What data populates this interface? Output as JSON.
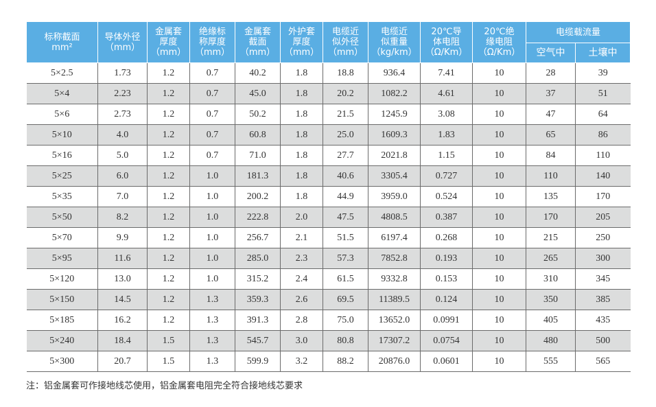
{
  "headers": {
    "c1": [
      "标称截面",
      "mm²"
    ],
    "c2": [
      "导体外径",
      "（mm）"
    ],
    "c3": [
      "金属套",
      "厚度",
      "（mm）"
    ],
    "c4": [
      "绝缘标",
      "称厚度",
      "（mm）"
    ],
    "c5": [
      "金属套",
      "截面",
      "（mm）"
    ],
    "c6": [
      "外护套",
      "厚度",
      "（mm）"
    ],
    "c7": [
      "电缆近",
      "似外径",
      "（mm）"
    ],
    "c8": [
      "电缆近",
      "似重量",
      "（kg/km）"
    ],
    "c9": [
      "20℃导",
      "体电阻",
      "（Ω/Km）"
    ],
    "c10": [
      "20℃绝",
      "缘电阻",
      "（Ω/Km）"
    ],
    "group": "电缆载流量",
    "sub_air": "空气中",
    "sub_soil": "土壤中"
  },
  "rows": [
    [
      "5×2.5",
      "1.73",
      "1.2",
      "0.7",
      "40.2",
      "1.8",
      "18.8",
      "936.4",
      "7.41",
      "10",
      "28",
      "39"
    ],
    [
      "5×4",
      "2.23",
      "1.2",
      "0.7",
      "45.0",
      "1.8",
      "20.2",
      "1082.2",
      "4.61",
      "10",
      "37",
      "51"
    ],
    [
      "5×6",
      "2.73",
      "1.2",
      "0.7",
      "50.2",
      "1.8",
      "21.5",
      "1245.9",
      "3.08",
      "10",
      "47",
      "64"
    ],
    [
      "5×10",
      "4.0",
      "1.2",
      "0.7",
      "60.8",
      "1.8",
      "25.0",
      "1609.3",
      "1.83",
      "10",
      "65",
      "86"
    ],
    [
      "5×16",
      "5.0",
      "1.2",
      "0.7",
      "71.0",
      "1.8",
      "27.7",
      "2021.8",
      "1.15",
      "10",
      "84",
      "110"
    ],
    [
      "5×25",
      "6.0",
      "1.2",
      "1.0",
      "181.3",
      "1.8",
      "40.6",
      "3305.4",
      "0.727",
      "10",
      "110",
      "140"
    ],
    [
      "5×35",
      "7.0",
      "1.2",
      "1.0",
      "200.2",
      "1.8",
      "44.9",
      "3959.0",
      "0.524",
      "10",
      "135",
      "170"
    ],
    [
      "5×50",
      "8.2",
      "1.2",
      "1.0",
      "222.8",
      "2.0",
      "47.5",
      "4808.5",
      "0.387",
      "10",
      "170",
      "205"
    ],
    [
      "5×70",
      "9.9",
      "1.2",
      "1.0",
      "256.7",
      "2.1",
      "51.5",
      "6197.4",
      "0.268",
      "10",
      "215",
      "250"
    ],
    [
      "5×95",
      "11.6",
      "1.2",
      "1.0",
      "285.0",
      "2.3",
      "57.3",
      "7852.8",
      "0.193",
      "10",
      "265",
      "300"
    ],
    [
      "5×120",
      "13.0",
      "1.2",
      "1.0",
      "315.2",
      "2.4",
      "61.5",
      "9332.8",
      "0.153",
      "10",
      "310",
      "345"
    ],
    [
      "5×150",
      "14.5",
      "1.2",
      "1.3",
      "359.3",
      "2.6",
      "69.5",
      "11389.5",
      "0.124",
      "10",
      "350",
      "385"
    ],
    [
      "5×185",
      "16.2",
      "1.2",
      "1.3",
      "391.3",
      "2.8",
      "75.0",
      "13652.0",
      "0.0991",
      "10",
      "405",
      "435"
    ],
    [
      "5×240",
      "18.4",
      "1.5",
      "1.3",
      "545.7",
      "3.0",
      "80.8",
      "17307.2",
      "0.0754",
      "10",
      "480",
      "500"
    ],
    [
      "5×300",
      "20.7",
      "1.5",
      "1.3",
      "599.9",
      "3.2",
      "88.2",
      "20876.0",
      "0.0601",
      "10",
      "555",
      "565"
    ]
  ],
  "note": "注：铝金属套可作接地线芯使用，铝金属套电阻完全符合接地线芯要求",
  "colors": {
    "header_bg": "#5aaee3",
    "row_alt": "#dcdddd",
    "border": "#6a6a6a"
  }
}
